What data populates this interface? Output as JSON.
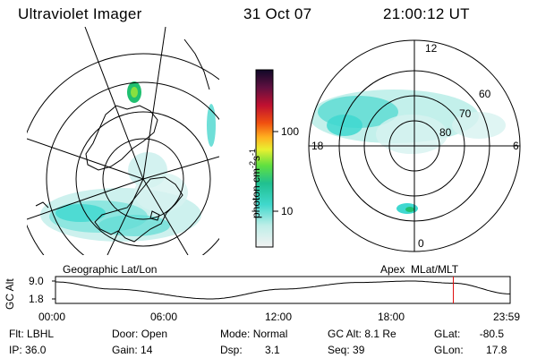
{
  "header": {
    "instrument": "Ultraviolet Imager",
    "date": "31 Oct 07",
    "time": "21:00:12 UT"
  },
  "colorbar": {
    "unit_label": "photon cm",
    "unit_sup1": "-2",
    "unit_mid": "s",
    "unit_sup2": "-1",
    "ticks": [
      "100",
      "10"
    ]
  },
  "left_panel": {
    "projection_label": "Geographic Lat/Lon"
  },
  "right_panel": {
    "projection_label": "Apex  MLat/MLT",
    "mlt_labels": {
      "top": "12",
      "bottom": "0",
      "left": "18",
      "right": "6"
    },
    "lat_labels": [
      "60",
      "70",
      "80"
    ]
  },
  "timeline": {
    "y_axis_label": "GC Alt",
    "y_ticks": [
      "9.0",
      "1.8"
    ],
    "x_ticks": [
      "00:00",
      "06:00",
      "12:00",
      "18:00",
      "23:59"
    ],
    "current_marker_hour": 21.0
  },
  "status": {
    "flt_label": "Flt:",
    "flt_value": "LBHL",
    "ip_label": "IP:",
    "ip_value": "36.0",
    "door_label": "Door:",
    "door_value": "Open",
    "gain_label": "Gain:",
    "gain_value": "14",
    "mode_label": "Mode:",
    "mode_value": "Normal",
    "dsp_label": "Dsp:",
    "dsp_value": "3.1",
    "gcalt_label": "GC Alt:",
    "gcalt_value": "8.1 Re",
    "seq_label": "Seq:",
    "seq_value": "39",
    "glat_label": "GLat:",
    "glat_value": "-80.5",
    "glon_label": "GLon:",
    "glon_value": "17.8"
  },
  "colors": {
    "aurora_cyan": "#3fd8d0",
    "aurora_green": "#22c070",
    "marker_red": "#e01010",
    "land_line": "#000000"
  }
}
